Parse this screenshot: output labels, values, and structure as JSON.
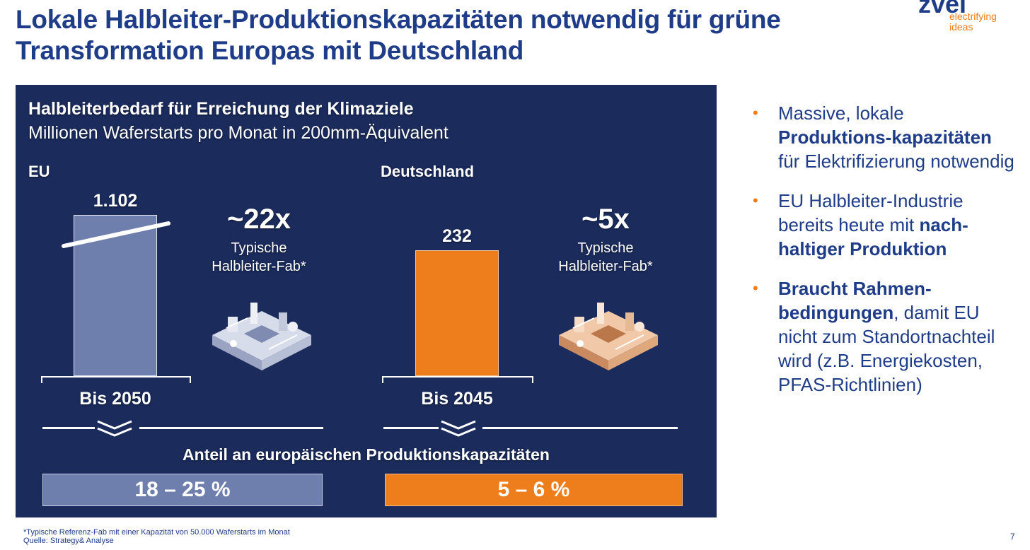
{
  "slide": {
    "title_line1": "Lokale Halbleiter-Produktionskapazitäten notwendig für grüne",
    "title_line2": "Transformation Europas mit Deutschland",
    "logo_mark": "zvei",
    "logo_sub": "electrifying ideas",
    "page_number": "7"
  },
  "chart_data": {
    "type": "bar",
    "title": "Halbleiterbedarf für Erreichung der Klimaziele",
    "subtitle": "Millionen Waferstarts pro Monat in 200mm-Äquivalent",
    "categories": [
      "EU",
      "Deutschland"
    ],
    "values": [
      1102,
      232
    ],
    "value_labels": [
      "1.102",
      "232"
    ],
    "period_labels": [
      "Bis 2050",
      "Bis 2045"
    ],
    "axis_break_on": [
      "EU"
    ],
    "multipliers": [
      {
        "value": "~22x",
        "line1": "Typische",
        "line2": "Halbleiter-Fab*"
      },
      {
        "value": "~5x",
        "line1": "Typische",
        "line2": "Halbleiter-Fab*"
      }
    ],
    "share_title": "Anteil an europäischen Produktionskapazitäten",
    "shares": [
      "18 – 25 %",
      "5 – 6 %"
    ],
    "colors": {
      "eu": "#6f7fad",
      "de": "#ee7d1c",
      "panel": "#1a2b5c"
    }
  },
  "bullets": [
    {
      "dot": "•",
      "parts": [
        {
          "text": "Massive, lokale ",
          "bold": false
        },
        {
          "text": "Produktions-kapazitäten",
          "bold": true
        },
        {
          "text": " für Elektrifizierung notwendig",
          "bold": false
        }
      ]
    },
    {
      "dot": "•",
      "parts": [
        {
          "text": "EU Halbleiter-Industrie bereits heute mit ",
          "bold": false
        },
        {
          "text": "nach-haltiger Produktion",
          "bold": true
        }
      ]
    },
    {
      "dot": "•",
      "parts": [
        {
          "text": "Braucht Rahmen-bedingungen",
          "bold": true
        },
        {
          "text": ", damit EU nicht zum Standortnachteil wird (z.B. Energiekosten, PFAS-Richtlinien)",
          "bold": false
        }
      ]
    }
  ],
  "footnote": {
    "line1": "*Typische Referenz-Fab mit einer Kapazität von 50.000 Waferstarts im Monat",
    "line2": "Quelle: Strategy& Analyse"
  }
}
